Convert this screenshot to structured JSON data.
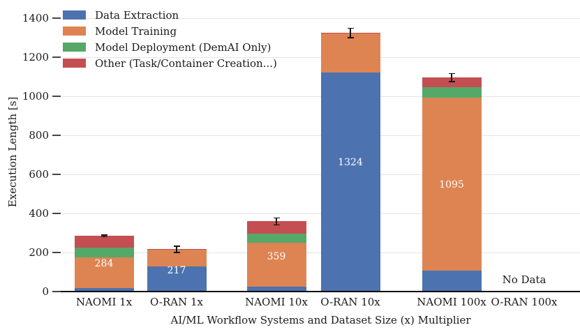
{
  "chart_data": {
    "type": "bar",
    "stacked": true,
    "xlabel": "AI/ML Workflow Systems and Dataset Size (x) Multiplier",
    "ylabel": "Execution Length [s]",
    "categories": [
      "NAOMI 1x",
      "O-RAN 1x",
      "NAOMI 10x",
      "O-RAN 10x",
      "NAOMI 100x",
      "O-RAN 100x"
    ],
    "series": [
      {
        "name": "Data Extraction",
        "color": "#4C72B0",
        "values": [
          18,
          127,
          25,
          1120,
          107,
          null
        ]
      },
      {
        "name": "Model Training",
        "color": "#DD8452",
        "values": [
          158,
          87,
          225,
          200,
          886,
          null
        ]
      },
      {
        "name": "Model Deployment (DemAI Only)",
        "color": "#55A868",
        "values": [
          49,
          0,
          45,
          0,
          53,
          null
        ]
      },
      {
        "name": "Other (Task/Container Creation...)",
        "color": "#C44E52",
        "values": [
          59,
          3,
          64,
          4,
          49,
          null
        ]
      }
    ],
    "totals": [
      284,
      217,
      359,
      1324,
      1095,
      null
    ],
    "bar_labels": [
      "284",
      "217",
      "359",
      "1324",
      "1095",
      ""
    ],
    "error_bars_half_width": [
      4,
      16,
      18,
      24,
      21,
      null
    ],
    "no_data_label": "No Data",
    "no_data_category": "O-RAN 100x",
    "ylim": [
      0,
      1400
    ],
    "yticks": [
      0,
      200,
      400,
      600,
      800,
      1000,
      1200,
      1400
    ],
    "grid": true,
    "legend_position": "upper-left",
    "colors": {
      "grid": "#e3e3e3",
      "axis": "#000000",
      "text": "#1a1a1a",
      "bar_label_text": "#ffffff"
    }
  }
}
